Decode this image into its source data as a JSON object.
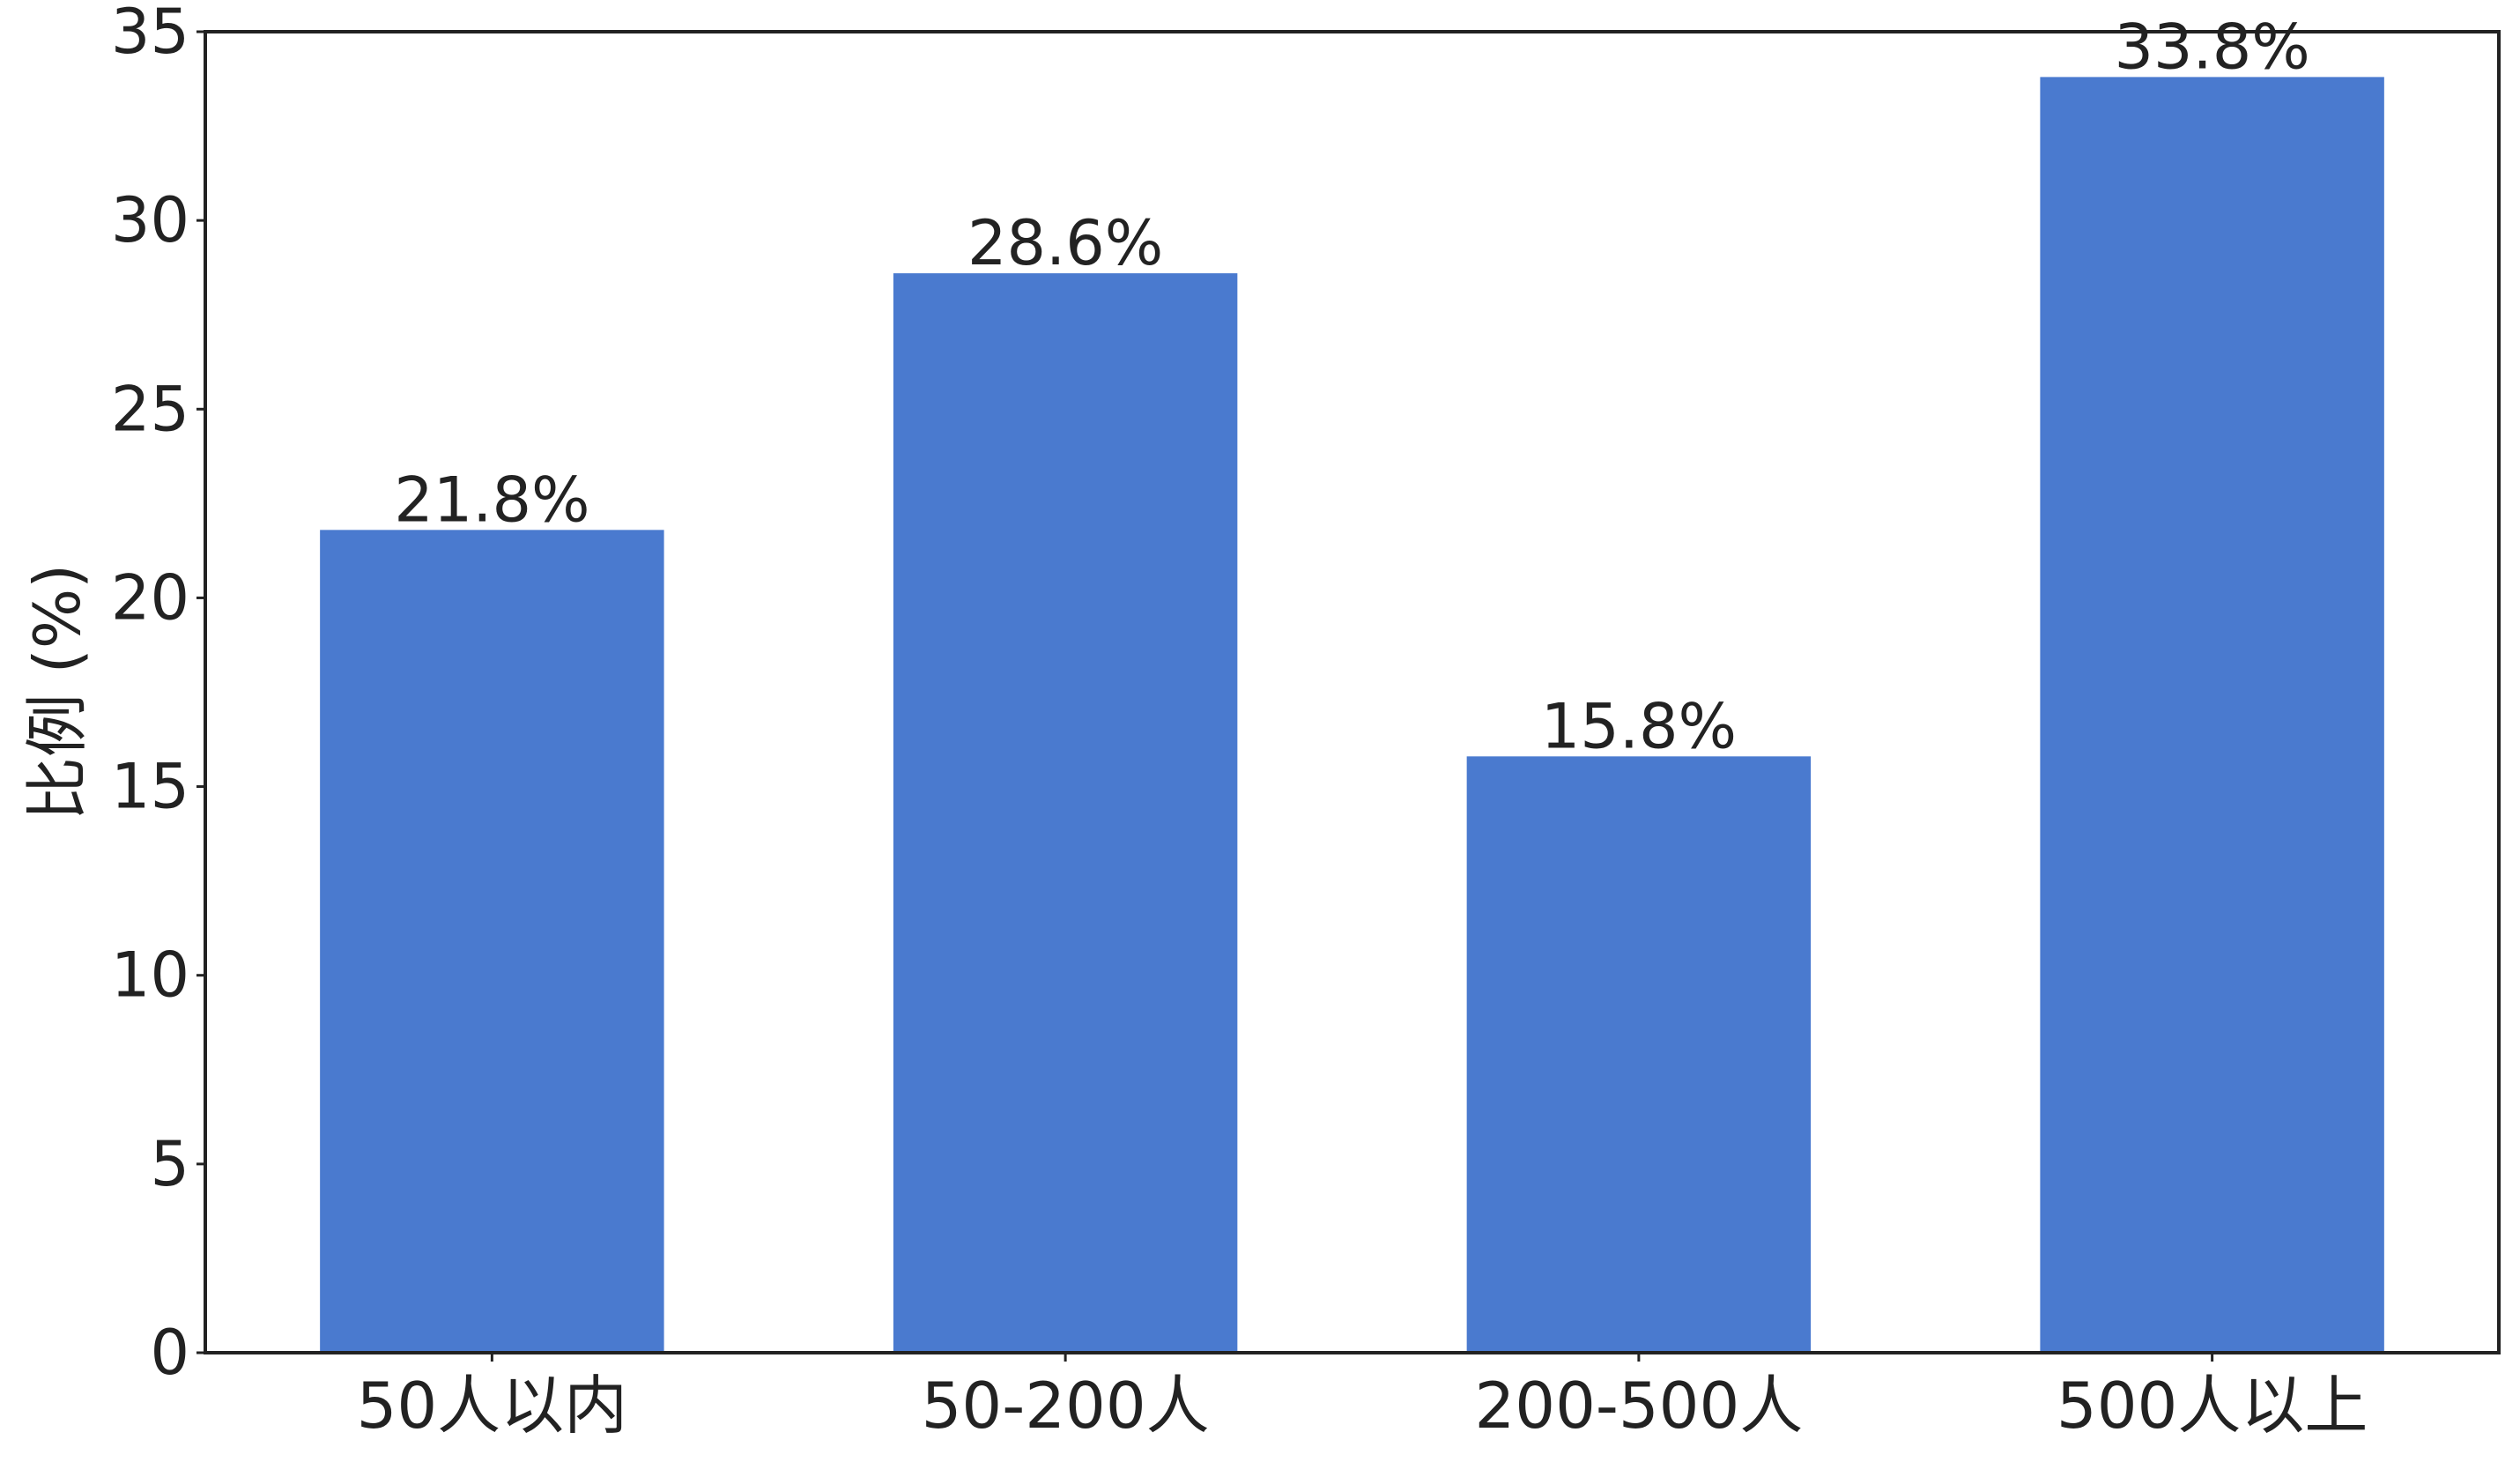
{
  "chart_data": {
    "type": "bar",
    "categories": [
      "50人以内",
      "50-200人",
      "200-500人",
      "500人以上"
    ],
    "values": [
      21.8,
      28.6,
      15.8,
      33.8
    ],
    "value_labels": [
      "21.8%",
      "28.6%",
      "15.8%",
      "33.8%"
    ],
    "title": "",
    "xlabel": "",
    "ylabel": "比例 (%)",
    "ylim": [
      0,
      35
    ],
    "yticks": [
      0,
      5,
      10,
      15,
      20,
      25,
      30,
      35
    ],
    "grid": false,
    "legend": "none",
    "bar_color": "#4a7acf",
    "axis_color": "#222222"
  }
}
